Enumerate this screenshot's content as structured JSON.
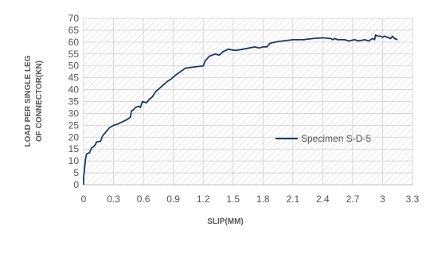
{
  "chart_data": {
    "type": "line",
    "xlabel": "SLIP(MM)",
    "ylabel": [
      "LOAD PER SINGLE LEG",
      "OF CONNECTOR(KN)"
    ],
    "xlim": [
      0,
      3.3
    ],
    "ylim": [
      0,
      70
    ],
    "x_ticks": [
      "0",
      "0.3",
      "0.6",
      "0.9",
      "1.2",
      "1.5",
      "1.8",
      "2.1",
      "2.4",
      "2.7",
      "3",
      "3.3"
    ],
    "y_ticks": [
      "0",
      "5",
      "10",
      "15",
      "20",
      "25",
      "30",
      "35",
      "40",
      "45",
      "50",
      "55",
      "60",
      "65",
      "70"
    ],
    "grid": "hatched",
    "legend_position": "right",
    "series": [
      {
        "name": "Specimen S-D-5",
        "color": "#1f3864",
        "points": [
          [
            0.0,
            0
          ],
          [
            0.0,
            3
          ],
          [
            0.01,
            7
          ],
          [
            0.02,
            11
          ],
          [
            0.03,
            13
          ],
          [
            0.06,
            13.5
          ],
          [
            0.08,
            15.5
          ],
          [
            0.1,
            16
          ],
          [
            0.12,
            17
          ],
          [
            0.13,
            18
          ],
          [
            0.17,
            18.3
          ],
          [
            0.19,
            20.5
          ],
          [
            0.22,
            22
          ],
          [
            0.26,
            24
          ],
          [
            0.3,
            25
          ],
          [
            0.34,
            25.5
          ],
          [
            0.39,
            26.5
          ],
          [
            0.44,
            27.5
          ],
          [
            0.47,
            28.5
          ],
          [
            0.48,
            31
          ],
          [
            0.5,
            31.5
          ],
          [
            0.52,
            32.5
          ],
          [
            0.55,
            33
          ],
          [
            0.57,
            32.5
          ],
          [
            0.59,
            35
          ],
          [
            0.63,
            34.5
          ],
          [
            0.66,
            36
          ],
          [
            0.69,
            37
          ],
          [
            0.72,
            39
          ],
          [
            0.76,
            40.5
          ],
          [
            0.8,
            42
          ],
          [
            0.84,
            43.5
          ],
          [
            0.88,
            44.5
          ],
          [
            0.92,
            46
          ],
          [
            0.97,
            47.5
          ],
          [
            1.02,
            49
          ],
          [
            1.1,
            49.5
          ],
          [
            1.2,
            50
          ],
          [
            1.22,
            52
          ],
          [
            1.26,
            54
          ],
          [
            1.32,
            55
          ],
          [
            1.36,
            54.5
          ],
          [
            1.4,
            56
          ],
          [
            1.45,
            57
          ],
          [
            1.52,
            56.5
          ],
          [
            1.6,
            57
          ],
          [
            1.66,
            57.5
          ],
          [
            1.72,
            58
          ],
          [
            1.76,
            57.5
          ],
          [
            1.8,
            58
          ],
          [
            1.84,
            58
          ],
          [
            1.87,
            59.5
          ],
          [
            1.92,
            60
          ],
          [
            2.0,
            60.5
          ],
          [
            2.1,
            61
          ],
          [
            2.2,
            61
          ],
          [
            2.3,
            61.5
          ],
          [
            2.4,
            61.8
          ],
          [
            2.48,
            61.5
          ],
          [
            2.5,
            61
          ],
          [
            2.52,
            61.5
          ],
          [
            2.55,
            61
          ],
          [
            2.62,
            61
          ],
          [
            2.66,
            60.5
          ],
          [
            2.72,
            61
          ],
          [
            2.76,
            60.5
          ],
          [
            2.82,
            61
          ],
          [
            2.86,
            60.5
          ],
          [
            2.9,
            61.5
          ],
          [
            2.92,
            61
          ],
          [
            2.93,
            63
          ],
          [
            2.95,
            62.5
          ],
          [
            2.98,
            62.5
          ],
          [
            3.0,
            62
          ],
          [
            3.02,
            62.5
          ],
          [
            3.05,
            62
          ],
          [
            3.08,
            61.5
          ],
          [
            3.1,
            62.5
          ],
          [
            3.12,
            61.5
          ],
          [
            3.15,
            61
          ]
        ]
      }
    ]
  }
}
